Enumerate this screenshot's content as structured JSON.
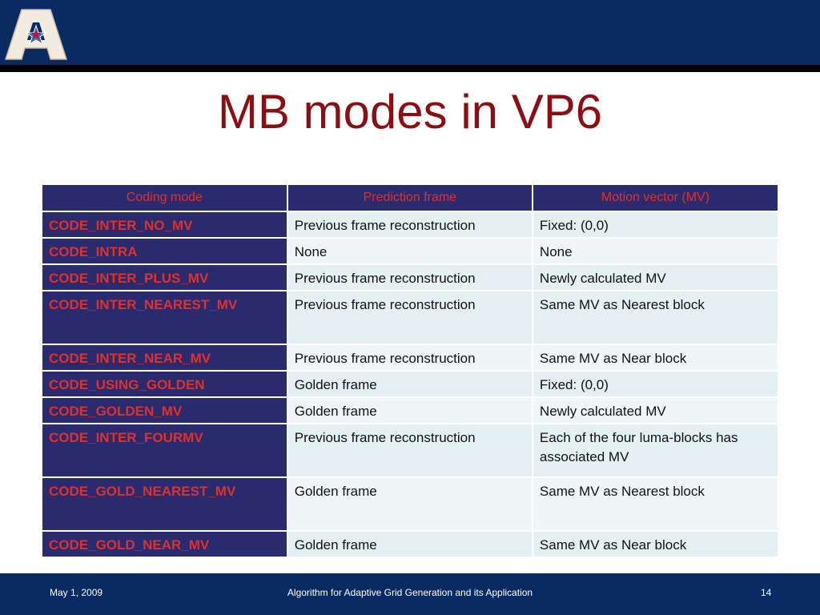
{
  "slide": {
    "title": "MB modes in VP6",
    "header_color": "#0a2a63",
    "title_color": "#8b0f12"
  },
  "logo": {
    "icon": "star-a-logo-icon",
    "letter": "A"
  },
  "table": {
    "headers": [
      "Coding mode",
      "Prediction frame",
      "Motion vector (MV)"
    ],
    "rows": [
      [
        "CODE_INTER_NO_MV",
        "Previous frame reconstruction",
        "Fixed: (0,0)"
      ],
      [
        "CODE_INTRA",
        "None",
        "None"
      ],
      [
        "CODE_INTER_PLUS_MV",
        "Previous frame reconstruction",
        "Newly calculated MV"
      ],
      [
        "CODE_INTER_NEAREST_MV",
        "Previous frame reconstruction",
        "Same MV as Nearest block"
      ],
      [
        "CODE_INTER_NEAR_MV",
        "Previous frame reconstruction",
        "Same MV as Near block"
      ],
      [
        "CODE_USING_GOLDEN",
        "Golden frame",
        "Fixed: (0,0)"
      ],
      [
        "CODE_GOLDEN_MV",
        "Golden frame",
        "Newly calculated MV"
      ],
      [
        "CODE_INTER_FOURMV",
        "Previous frame reconstruction",
        "Each of the four luma-blocks has associated MV"
      ],
      [
        "CODE_GOLD_NEAREST_MV",
        "Golden frame",
        "Same MV as Nearest block"
      ],
      [
        "CODE_GOLD_NEAR_MV",
        "Golden frame",
        "Same MV as Near block"
      ]
    ]
  },
  "footer": {
    "date": "May 1, 2009",
    "title": "Algorithm for Adaptive Grid Generation and its Application",
    "page": "14"
  }
}
